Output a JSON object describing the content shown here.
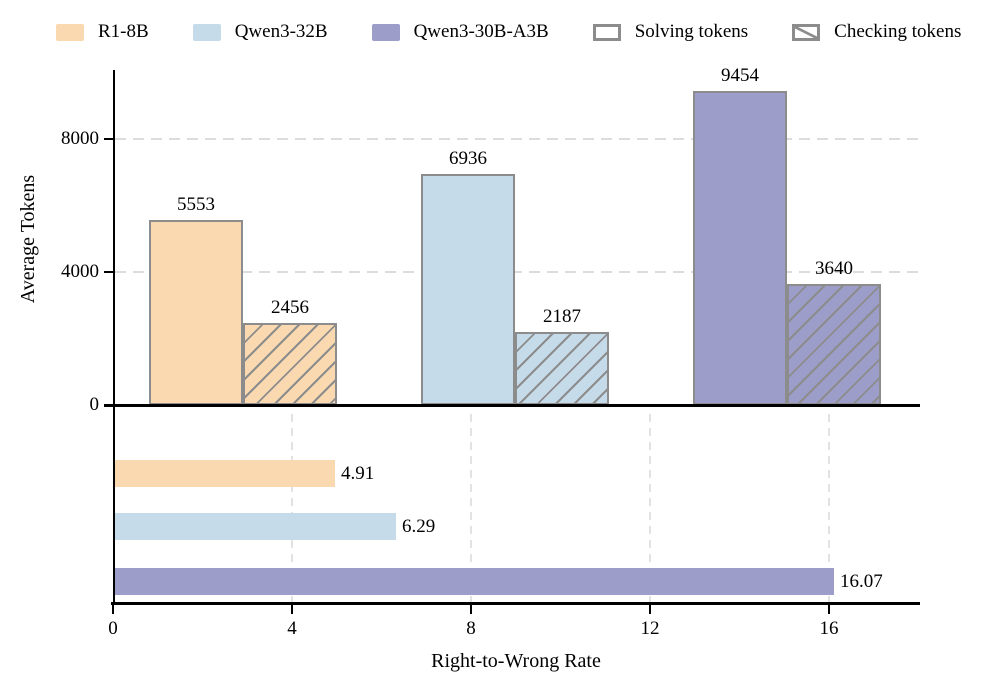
{
  "legend": {
    "items": [
      {
        "label": "R1-8B",
        "swatch": "fill",
        "color": "#fad9b1"
      },
      {
        "label": "Qwen3-32B",
        "swatch": "fill",
        "color": "#c6dbea"
      },
      {
        "label": "Qwen3-30B-A3B",
        "swatch": "fill",
        "color": "#9c9dc9"
      },
      {
        "label": "Solving tokens",
        "swatch": "open",
        "color": "#ffffff"
      },
      {
        "label": "Checking tokens",
        "swatch": "hatched",
        "color": "#ffffff"
      }
    ]
  },
  "colors": {
    "series": [
      "#fad9b1",
      "#c6dbea",
      "#9c9dc9"
    ],
    "bar_edge": "#8c8c8c",
    "hatch": "#8c8c8c",
    "grid": "#dcdcdc",
    "axis": "#000000",
    "text": "#000000"
  },
  "chart_data": [
    {
      "type": "bar",
      "title": "",
      "ylabel": "Average Tokens",
      "xlabel": "",
      "categories": [
        "R1-8B",
        "Qwen3-32B",
        "Qwen3-30B-A3B"
      ],
      "series": [
        {
          "name": "Solving tokens",
          "style": "solid",
          "values": [
            5553,
            6936,
            9454
          ]
        },
        {
          "name": "Checking tokens",
          "style": "hatched",
          "values": [
            2456,
            2187,
            3640
          ]
        }
      ],
      "yticks": [
        0,
        4000,
        8000
      ],
      "ylim": [
        0,
        10100
      ],
      "grid": "horizontal dashed at 4000 and 8000",
      "value_labels": [
        "5553",
        "2456",
        "6936",
        "2187",
        "9454",
        "3640"
      ],
      "legend_position": "top"
    },
    {
      "type": "bar-horizontal",
      "title": "",
      "xlabel": "Right-to-Wrong Rate",
      "ylabel": "",
      "categories": [
        "R1-8B",
        "Qwen3-32B",
        "Qwen3-30B-A3B"
      ],
      "values": [
        4.91,
        6.29,
        16.07
      ],
      "xticks": [
        0,
        4,
        8,
        12,
        16
      ],
      "xlim": [
        0,
        18
      ],
      "grid": "vertical dashed at 4, 8, 12, 16",
      "value_labels": [
        "4.91",
        "6.29",
        "16.07"
      ]
    }
  ]
}
